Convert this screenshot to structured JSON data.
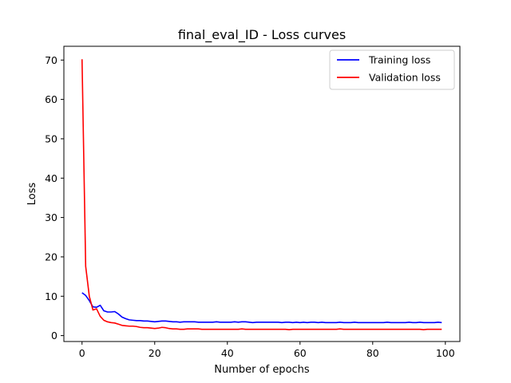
{
  "chart_data": {
    "type": "line",
    "title": "final_eval_ID - Loss curves",
    "xlabel": "Number of epochs",
    "ylabel": "Loss",
    "xlim": [
      -5,
      104
    ],
    "ylim": [
      -1.5,
      73.5
    ],
    "xticks": [
      0,
      20,
      40,
      60,
      80,
      100
    ],
    "yticks": [
      0,
      10,
      20,
      30,
      40,
      50,
      60,
      70
    ],
    "grid": false,
    "legend_position": "top-right",
    "series": [
      {
        "name": "Training loss",
        "color": "#0000ff",
        "x": [
          0,
          1,
          2,
          3,
          4,
          5,
          6,
          7,
          8,
          9,
          10,
          11,
          12,
          13,
          14,
          15,
          16,
          17,
          18,
          19,
          20,
          21,
          22,
          23,
          24,
          25,
          26,
          27,
          28,
          29,
          30,
          31,
          32,
          33,
          34,
          35,
          36,
          37,
          38,
          39,
          40,
          41,
          42,
          43,
          44,
          45,
          46,
          47,
          48,
          49,
          50,
          51,
          52,
          53,
          54,
          55,
          56,
          57,
          58,
          59,
          60,
          61,
          62,
          63,
          64,
          65,
          66,
          67,
          68,
          69,
          70,
          71,
          72,
          73,
          74,
          75,
          76,
          77,
          78,
          79,
          80,
          81,
          82,
          83,
          84,
          85,
          86,
          87,
          88,
          89,
          90,
          91,
          92,
          93,
          94,
          95,
          96,
          97,
          98,
          99
        ],
        "values": [
          10.9,
          10.2,
          8.9,
          7.3,
          7.2,
          7.7,
          6.3,
          6.0,
          6.0,
          6.1,
          5.5,
          4.7,
          4.3,
          4.0,
          3.9,
          3.8,
          3.8,
          3.7,
          3.7,
          3.6,
          3.5,
          3.6,
          3.7,
          3.7,
          3.6,
          3.5,
          3.5,
          3.4,
          3.5,
          3.5,
          3.5,
          3.5,
          3.4,
          3.4,
          3.4,
          3.4,
          3.4,
          3.5,
          3.4,
          3.4,
          3.4,
          3.4,
          3.5,
          3.4,
          3.5,
          3.5,
          3.4,
          3.3,
          3.4,
          3.4,
          3.4,
          3.4,
          3.4,
          3.4,
          3.4,
          3.3,
          3.4,
          3.4,
          3.3,
          3.4,
          3.3,
          3.4,
          3.3,
          3.4,
          3.4,
          3.3,
          3.4,
          3.3,
          3.3,
          3.3,
          3.3,
          3.4,
          3.3,
          3.3,
          3.3,
          3.4,
          3.3,
          3.3,
          3.3,
          3.3,
          3.3,
          3.3,
          3.3,
          3.3,
          3.4,
          3.3,
          3.3,
          3.3,
          3.3,
          3.3,
          3.4,
          3.3,
          3.3,
          3.4,
          3.3,
          3.3,
          3.3,
          3.3,
          3.4,
          3.3
        ]
      },
      {
        "name": "Validation loss",
        "color": "#ff0000",
        "x": [
          0,
          1,
          2,
          3,
          4,
          5,
          6,
          7,
          8,
          9,
          10,
          11,
          12,
          13,
          14,
          15,
          16,
          17,
          18,
          19,
          20,
          21,
          22,
          23,
          24,
          25,
          26,
          27,
          28,
          29,
          30,
          31,
          32,
          33,
          34,
          35,
          36,
          37,
          38,
          39,
          40,
          41,
          42,
          43,
          44,
          45,
          46,
          47,
          48,
          49,
          50,
          51,
          52,
          53,
          54,
          55,
          56,
          57,
          58,
          59,
          60,
          61,
          62,
          63,
          64,
          65,
          66,
          67,
          68,
          69,
          70,
          71,
          72,
          73,
          74,
          75,
          76,
          77,
          78,
          79,
          80,
          81,
          82,
          83,
          84,
          85,
          86,
          87,
          88,
          89,
          90,
          91,
          92,
          93,
          94,
          95,
          96,
          97,
          98,
          99
        ],
        "values": [
          70.2,
          17.6,
          10.0,
          6.5,
          6.8,
          4.9,
          3.9,
          3.5,
          3.3,
          3.2,
          2.9,
          2.6,
          2.5,
          2.4,
          2.4,
          2.3,
          2.1,
          2.0,
          2.0,
          1.9,
          1.8,
          1.9,
          2.1,
          2.0,
          1.8,
          1.7,
          1.7,
          1.6,
          1.6,
          1.7,
          1.7,
          1.7,
          1.7,
          1.6,
          1.6,
          1.6,
          1.6,
          1.6,
          1.6,
          1.6,
          1.6,
          1.6,
          1.6,
          1.6,
          1.7,
          1.6,
          1.6,
          1.6,
          1.6,
          1.6,
          1.6,
          1.6,
          1.6,
          1.6,
          1.6,
          1.6,
          1.6,
          1.5,
          1.6,
          1.6,
          1.6,
          1.6,
          1.6,
          1.6,
          1.6,
          1.6,
          1.6,
          1.6,
          1.6,
          1.6,
          1.6,
          1.7,
          1.6,
          1.6,
          1.6,
          1.6,
          1.6,
          1.6,
          1.6,
          1.6,
          1.6,
          1.6,
          1.6,
          1.6,
          1.6,
          1.6,
          1.6,
          1.6,
          1.6,
          1.6,
          1.6,
          1.6,
          1.6,
          1.6,
          1.5,
          1.6,
          1.6,
          1.6,
          1.6,
          1.6
        ]
      }
    ]
  }
}
